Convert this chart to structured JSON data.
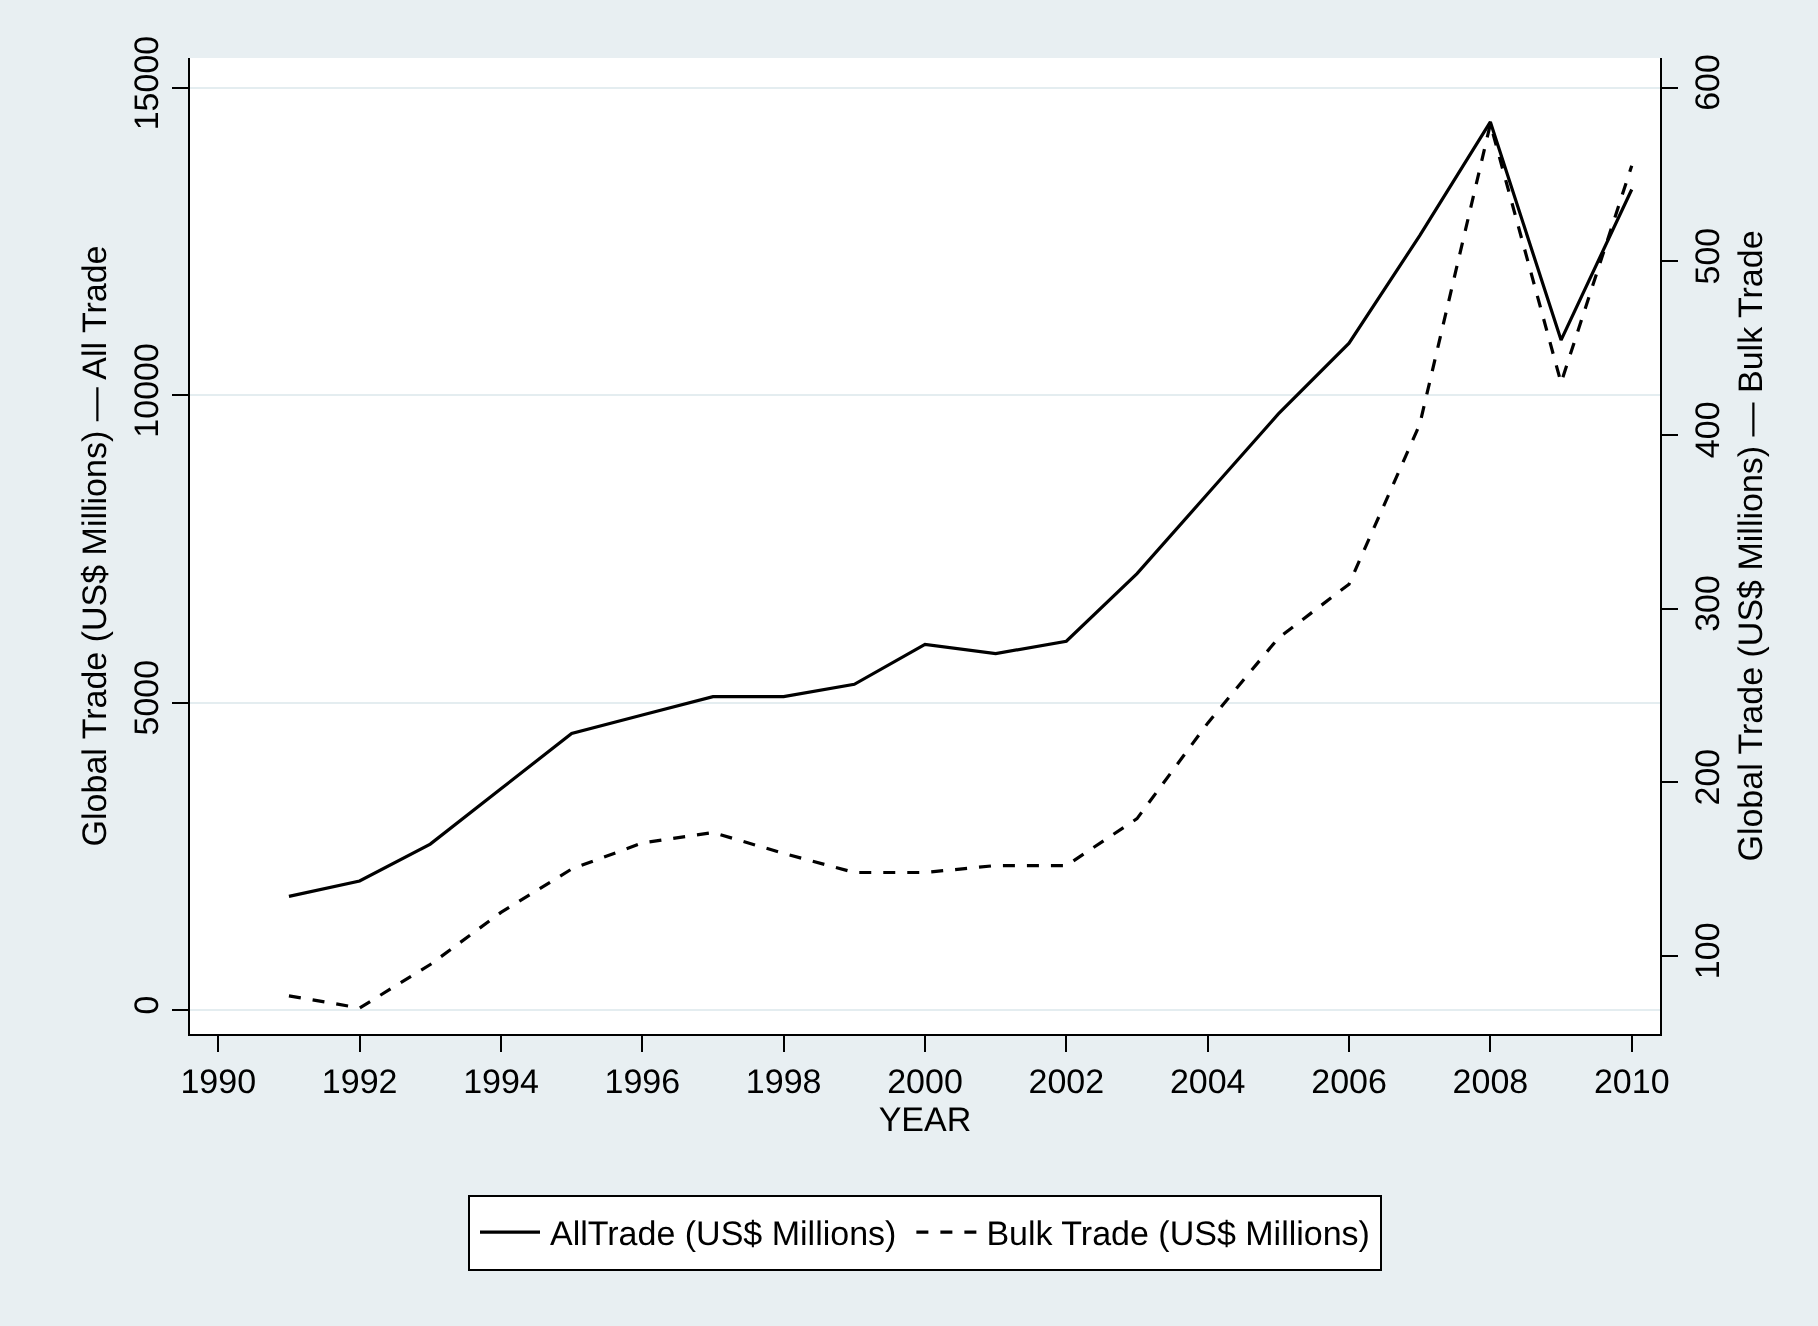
{
  "chart_data": {
    "type": "line",
    "xlabel": "YEAR",
    "ylabel": "Global Trade (US$ Millions) — All Trade",
    "y2label": "Global Trade (US$ Millions) — Bulk Trade",
    "x": [
      1991,
      1992,
      1993,
      1994,
      1995,
      1996,
      1997,
      1998,
      1999,
      2000,
      2001,
      2002,
      2003,
      2004,
      2005,
      2006,
      2007,
      2008,
      2009,
      2010
    ],
    "series": [
      {
        "name": "AllTrade (US$ Millions)",
        "color": "#000000",
        "line_style": "solid",
        "values": [
          1850,
          2100,
          2700,
          3600,
          4500,
          4800,
          5100,
          5100,
          5300,
          5950,
          5800,
          6000,
          7100,
          8400,
          9700,
          10850,
          12600,
          14450,
          10900,
          13350
        ]
      },
      {
        "name": "Bulk Trade (US$ Millions)",
        "color": "#000000",
        "line_style": "dashed",
        "axis": "y2",
        "values": [
          77,
          70,
          95,
          125,
          150,
          165,
          171,
          159,
          148,
          148,
          152,
          152,
          179,
          234,
          283,
          314,
          406,
          579,
          430,
          555
        ]
      }
    ],
    "xlim": [
      1989.6,
      2010.4
    ],
    "xticks": [
      1990,
      1992,
      1994,
      1996,
      1998,
      2000,
      2002,
      2004,
      2006,
      2008,
      2010
    ],
    "ylim": [
      -390,
      15490
    ],
    "yticks": [
      0,
      5000,
      10000,
      15000
    ],
    "y2lim": [
      55,
      617
    ],
    "y2ticks": [
      100,
      200,
      300,
      400,
      500,
      600
    ],
    "grid": "y",
    "legend": "bottom",
    "marker": "none"
  }
}
